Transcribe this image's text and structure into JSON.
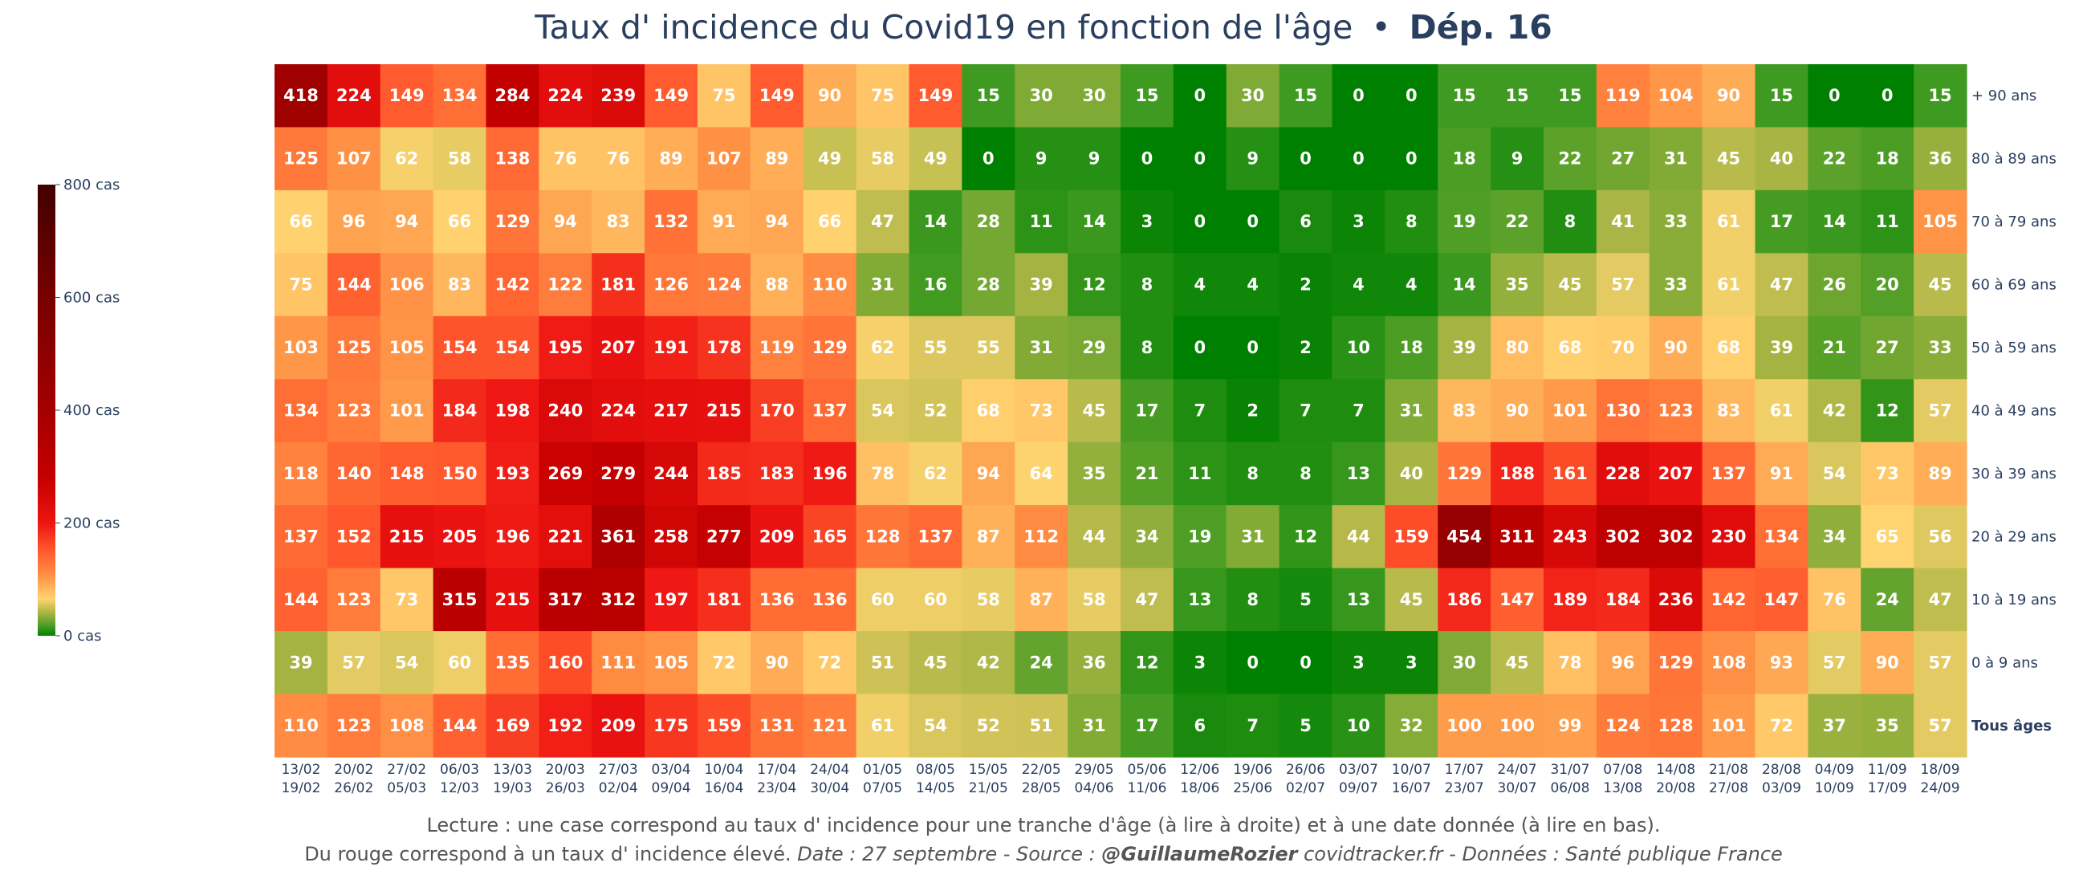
{
  "chart_data": {
    "type": "heatmap",
    "title": "Taux d' incidence du Covid19 en fonction de l'âge",
    "title_separator": "•",
    "title_bold": "Dép. 16",
    "rows": [
      "+ 90 ans",
      "80 à 89 ans",
      "70 à 79 ans",
      "60 à 69 ans",
      "50 à 59 ans",
      "40 à 49 ans",
      "30 à 39 ans",
      "20 à 29 ans",
      "10 à 19 ans",
      "0 à 9 ans",
      "Tous âges"
    ],
    "columns": [
      {
        "start": "13/02",
        "end": "19/02"
      },
      {
        "start": "20/02",
        "end": "26/02"
      },
      {
        "start": "27/02",
        "end": "05/03"
      },
      {
        "start": "06/03",
        "end": "12/03"
      },
      {
        "start": "13/03",
        "end": "19/03"
      },
      {
        "start": "20/03",
        "end": "26/03"
      },
      {
        "start": "27/03",
        "end": "02/04"
      },
      {
        "start": "03/04",
        "end": "09/04"
      },
      {
        "start": "10/04",
        "end": "16/04"
      },
      {
        "start": "17/04",
        "end": "23/04"
      },
      {
        "start": "24/04",
        "end": "30/04"
      },
      {
        "start": "01/05",
        "end": "07/05"
      },
      {
        "start": "08/05",
        "end": "14/05"
      },
      {
        "start": "15/05",
        "end": "21/05"
      },
      {
        "start": "22/05",
        "end": "28/05"
      },
      {
        "start": "29/05",
        "end": "04/06"
      },
      {
        "start": "05/06",
        "end": "11/06"
      },
      {
        "start": "12/06",
        "end": "18/06"
      },
      {
        "start": "19/06",
        "end": "25/06"
      },
      {
        "start": "26/06",
        "end": "02/07"
      },
      {
        "start": "03/07",
        "end": "09/07"
      },
      {
        "start": "10/07",
        "end": "16/07"
      },
      {
        "start": "17/07",
        "end": "23/07"
      },
      {
        "start": "24/07",
        "end": "30/07"
      },
      {
        "start": "31/07",
        "end": "06/08"
      },
      {
        "start": "07/08",
        "end": "13/08"
      },
      {
        "start": "14/08",
        "end": "20/08"
      },
      {
        "start": "21/08",
        "end": "27/08"
      },
      {
        "start": "28/08",
        "end": "03/09"
      },
      {
        "start": "04/09",
        "end": "10/09"
      },
      {
        "start": "11/09",
        "end": "17/09"
      },
      {
        "start": "18/09",
        "end": "24/09"
      }
    ],
    "values": [
      [
        418,
        224,
        149,
        134,
        284,
        224,
        239,
        149,
        75,
        149,
        90,
        75,
        149,
        15,
        30,
        30,
        15,
        0,
        30,
        15,
        0,
        0,
        15,
        15,
        15,
        119,
        104,
        90,
        15,
        0,
        0,
        15
      ],
      [
        125,
        107,
        62,
        58,
        138,
        76,
        76,
        89,
        107,
        89,
        49,
        58,
        49,
        0,
        9,
        9,
        0,
        0,
        9,
        0,
        0,
        0,
        18,
        9,
        22,
        27,
        31,
        45,
        40,
        22,
        18,
        36
      ],
      [
        66,
        96,
        94,
        66,
        129,
        94,
        83,
        132,
        91,
        94,
        66,
        47,
        14,
        28,
        11,
        14,
        3,
        0,
        0,
        6,
        3,
        8,
        19,
        22,
        8,
        41,
        33,
        61,
        17,
        14,
        11,
        105
      ],
      [
        75,
        144,
        106,
        83,
        142,
        122,
        181,
        126,
        124,
        88,
        110,
        31,
        16,
        28,
        39,
        12,
        8,
        4,
        4,
        2,
        4,
        4,
        14,
        35,
        45,
        57,
        33,
        61,
        47,
        26,
        20,
        45
      ],
      [
        103,
        125,
        105,
        154,
        154,
        195,
        207,
        191,
        178,
        119,
        129,
        62,
        55,
        55,
        31,
        29,
        8,
        0,
        0,
        2,
        10,
        18,
        39,
        80,
        68,
        70,
        90,
        68,
        39,
        21,
        27,
        33
      ],
      [
        134,
        123,
        101,
        184,
        198,
        240,
        224,
        217,
        215,
        170,
        137,
        54,
        52,
        68,
        73,
        45,
        17,
        7,
        2,
        7,
        7,
        31,
        83,
        90,
        101,
        130,
        123,
        83,
        61,
        42,
        12,
        57
      ],
      [
        118,
        140,
        148,
        150,
        193,
        269,
        279,
        244,
        185,
        183,
        196,
        78,
        62,
        94,
        64,
        35,
        21,
        11,
        8,
        8,
        13,
        40,
        129,
        188,
        161,
        228,
        207,
        137,
        91,
        54,
        73,
        89
      ],
      [
        137,
        152,
        215,
        205,
        196,
        221,
        361,
        258,
        277,
        209,
        165,
        128,
        137,
        87,
        112,
        44,
        34,
        19,
        31,
        12,
        44,
        159,
        454,
        311,
        243,
        302,
        302,
        230,
        134,
        34,
        65,
        56
      ],
      [
        144,
        123,
        73,
        315,
        215,
        317,
        312,
        197,
        181,
        136,
        136,
        60,
        60,
        58,
        87,
        58,
        47,
        13,
        8,
        5,
        13,
        45,
        186,
        147,
        189,
        184,
        236,
        142,
        147,
        76,
        24,
        47
      ],
      [
        39,
        57,
        54,
        60,
        135,
        160,
        111,
        105,
        72,
        90,
        72,
        51,
        45,
        42,
        24,
        36,
        12,
        3,
        0,
        0,
        3,
        3,
        30,
        45,
        78,
        96,
        129,
        108,
        93,
        57,
        90,
        57
      ],
      [
        110,
        123,
        108,
        144,
        169,
        192,
        209,
        175,
        159,
        131,
        121,
        61,
        54,
        52,
        51,
        31,
        17,
        6,
        7,
        5,
        10,
        32,
        100,
        100,
        99,
        124,
        128,
        101,
        72,
        37,
        35,
        57
      ]
    ],
    "zmin": 0,
    "zmax": 800,
    "colorscale": [
      {
        "v": 0,
        "color": "#008000"
      },
      {
        "v": 15,
        "color": "#3e9a20"
      },
      {
        "v": 40,
        "color": "#a8b443"
      },
      {
        "v": 65,
        "color": "#ffd470"
      },
      {
        "v": 110,
        "color": "#ff8c42"
      },
      {
        "v": 150,
        "color": "#ff5a2d"
      },
      {
        "v": 200,
        "color": "#ee1412"
      },
      {
        "v": 280,
        "color": "#c40000"
      },
      {
        "v": 400,
        "color": "#a30000"
      },
      {
        "v": 600,
        "color": "#780000"
      },
      {
        "v": 800,
        "color": "#420000"
      }
    ],
    "colorbar": {
      "ticks": [
        0,
        200,
        400,
        600,
        800
      ],
      "tick_labels": [
        "0 cas",
        "200 cas",
        "400 cas",
        "600 cas",
        "800 cas"
      ]
    }
  },
  "footer": {
    "line1": "Lecture : une case correspond au taux d' incidence pour une tranche d'âge (à lire à droite) et à une date donnée (à lire en bas).",
    "line2_start": "Du rouge correspond à un taux d' incidence élevé.  ",
    "line2_italic": "Date : 27 septembre - Source : ",
    "line2_bold": "@GuillaumeRozier",
    "line2_end": " covidtracker.fr - Données : Santé publique France"
  }
}
